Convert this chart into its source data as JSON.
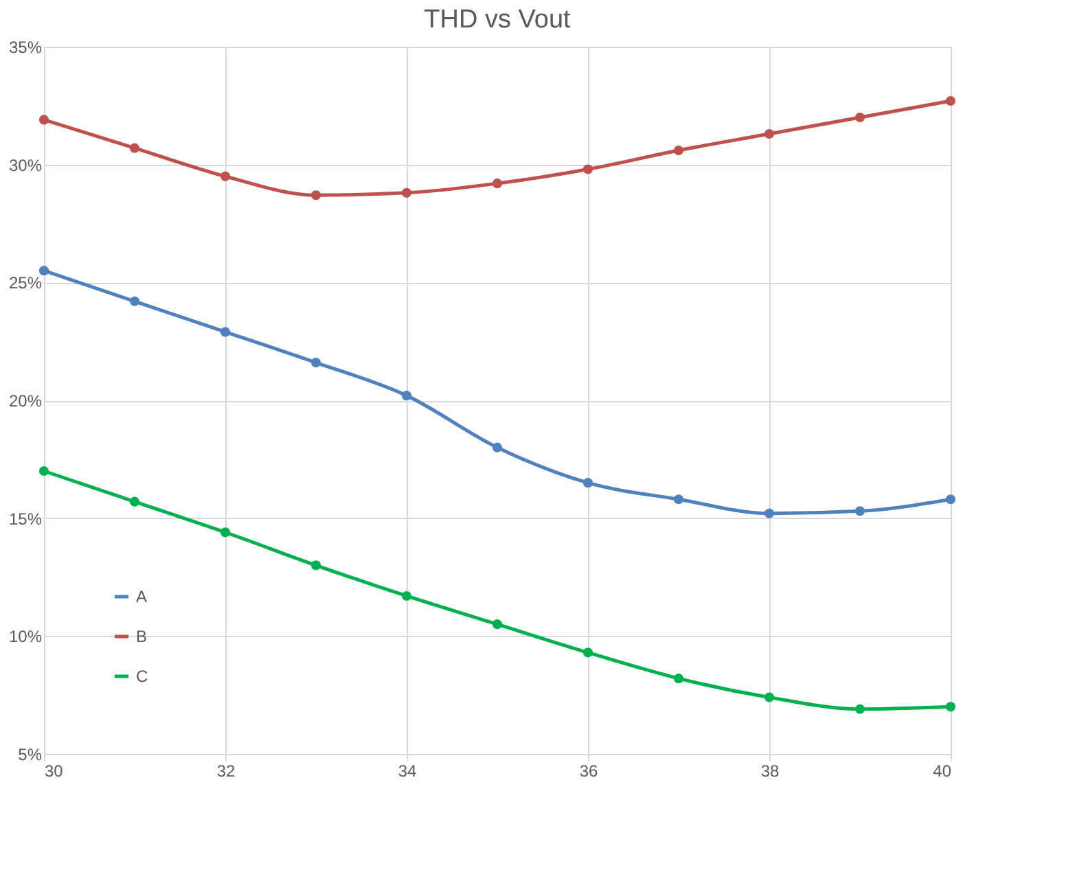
{
  "chart_data": {
    "type": "line",
    "title": "THD vs Vout",
    "x": [
      30,
      31,
      32,
      33,
      34,
      35,
      36,
      37,
      38,
      39,
      40
    ],
    "series": [
      {
        "name": "A",
        "color": "#4f81bd",
        "values": [
          25.5,
          24.2,
          22.9,
          21.6,
          20.2,
          18.0,
          16.5,
          15.8,
          15.2,
          15.3,
          15.8
        ]
      },
      {
        "name": "B",
        "color": "#c0504d",
        "values": [
          31.9,
          30.7,
          29.5,
          28.7,
          28.8,
          29.2,
          29.8,
          30.6,
          31.3,
          32.0,
          32.7
        ]
      },
      {
        "name": "C",
        "color": "#00b050",
        "values": [
          17.0,
          15.7,
          14.4,
          13.0,
          11.7,
          10.5,
          9.3,
          8.2,
          7.4,
          6.9,
          7.0
        ]
      }
    ],
    "xlim": [
      30,
      40
    ],
    "xticks": [
      30,
      32,
      34,
      36,
      38,
      40
    ],
    "ylim": [
      5,
      35
    ],
    "yticks": [
      {
        "value": 5,
        "label": "5%"
      },
      {
        "value": 10,
        "label": "10%"
      },
      {
        "value": 15,
        "label": "15%"
      },
      {
        "value": 20,
        "label": "20%"
      },
      {
        "value": 25,
        "label": "25%"
      },
      {
        "value": 30,
        "label": "30%"
      },
      {
        "value": 35,
        "label": "35%"
      }
    ],
    "grid": true,
    "legend": "bottom left",
    "marker": "circle",
    "line_style": "solid"
  }
}
